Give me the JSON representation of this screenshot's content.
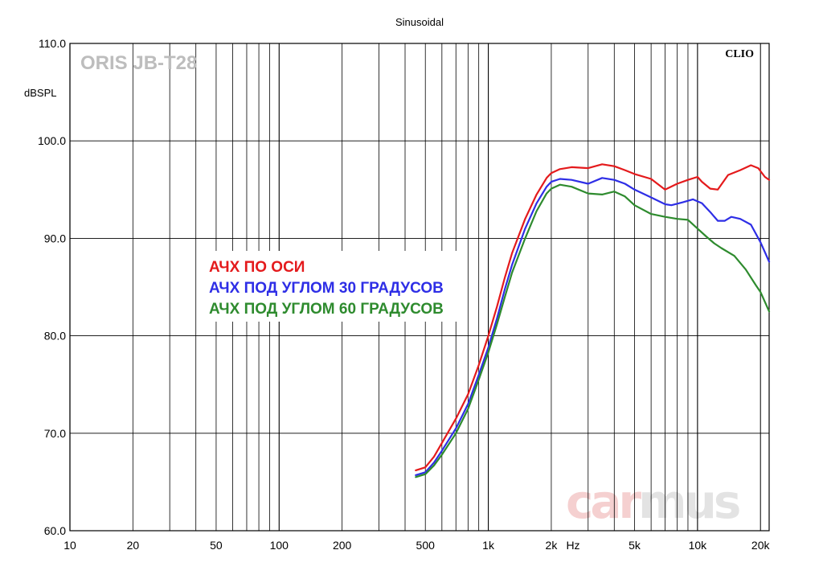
{
  "chart_data": {
    "type": "line",
    "title": "Sinusoidal",
    "ylabel": "dBSPL",
    "xlabel": "Hz",
    "x_scale": "log",
    "xlim": [
      10,
      22000
    ],
    "ylim": [
      60,
      110
    ],
    "grid": true,
    "legend_position": "left-middle",
    "y_ticks": [
      {
        "value": 60,
        "label": "60.0"
      },
      {
        "value": 70,
        "label": "70.0"
      },
      {
        "value": 80,
        "label": "80.0"
      },
      {
        "value": 90,
        "label": "90.0"
      },
      {
        "value": 100,
        "label": "100.0"
      },
      {
        "value": 110,
        "label": "110.0"
      }
    ],
    "x_ticks": [
      {
        "value": 10,
        "label": "10"
      },
      {
        "value": 20,
        "label": "20"
      },
      {
        "value": 50,
        "label": "50"
      },
      {
        "value": 100,
        "label": "100"
      },
      {
        "value": 200,
        "label": "200"
      },
      {
        "value": 500,
        "label": "500"
      },
      {
        "value": 1000,
        "label": "1k"
      },
      {
        "value": 2000,
        "label": "2k"
      },
      {
        "value": 5000,
        "label": "5k"
      },
      {
        "value": 10000,
        "label": "10k"
      },
      {
        "value": 20000,
        "label": "20k"
      }
    ],
    "series": [
      {
        "name": "АЧХ ПО ОСИ",
        "color": "#e41a1c",
        "points": [
          [
            450,
            66.2
          ],
          [
            500,
            66.5
          ],
          [
            550,
            67.6
          ],
          [
            600,
            69.0
          ],
          [
            700,
            71.5
          ],
          [
            800,
            74.0
          ],
          [
            900,
            77.0
          ],
          [
            1000,
            80.0
          ],
          [
            1100,
            83.0
          ],
          [
            1200,
            86.0
          ],
          [
            1300,
            88.5
          ],
          [
            1500,
            92.0
          ],
          [
            1700,
            94.5
          ],
          [
            1900,
            96.2
          ],
          [
            2000,
            96.7
          ],
          [
            2200,
            97.1
          ],
          [
            2500,
            97.3
          ],
          [
            3000,
            97.2
          ],
          [
            3500,
            97.6
          ],
          [
            4000,
            97.4
          ],
          [
            4500,
            97.0
          ],
          [
            5000,
            96.6
          ],
          [
            6000,
            96.1
          ],
          [
            6800,
            95.2
          ],
          [
            7000,
            95.0
          ],
          [
            8000,
            95.6
          ],
          [
            9000,
            96.0
          ],
          [
            10000,
            96.3
          ],
          [
            10500,
            95.8
          ],
          [
            11500,
            95.1
          ],
          [
            12500,
            95.0
          ],
          [
            14000,
            96.5
          ],
          [
            16000,
            97.0
          ],
          [
            18000,
            97.5
          ],
          [
            19500,
            97.2
          ],
          [
            21000,
            96.3
          ],
          [
            22000,
            96.0
          ]
        ]
      },
      {
        "name": "АЧХ ПОД УГЛОМ 30 ГРАДУСОВ",
        "color": "#2e2ee6",
        "points": [
          [
            450,
            65.7
          ],
          [
            500,
            66.0
          ],
          [
            550,
            67.0
          ],
          [
            600,
            68.2
          ],
          [
            700,
            70.5
          ],
          [
            800,
            73.0
          ],
          [
            900,
            76.0
          ],
          [
            1000,
            78.8
          ],
          [
            1100,
            81.8
          ],
          [
            1200,
            84.8
          ],
          [
            1300,
            87.3
          ],
          [
            1500,
            91.0
          ],
          [
            1700,
            93.6
          ],
          [
            1900,
            95.3
          ],
          [
            2000,
            95.8
          ],
          [
            2200,
            96.1
          ],
          [
            2500,
            96.0
          ],
          [
            3000,
            95.6
          ],
          [
            3500,
            96.2
          ],
          [
            4000,
            96.0
          ],
          [
            4500,
            95.6
          ],
          [
            5000,
            95.0
          ],
          [
            6000,
            94.2
          ],
          [
            7000,
            93.5
          ],
          [
            7500,
            93.4
          ],
          [
            8500,
            93.7
          ],
          [
            9500,
            94.0
          ],
          [
            10500,
            93.6
          ],
          [
            11500,
            92.7
          ],
          [
            12500,
            91.8
          ],
          [
            13500,
            91.8
          ],
          [
            14500,
            92.2
          ],
          [
            16000,
            92.0
          ],
          [
            18000,
            91.4
          ],
          [
            20000,
            89.6
          ],
          [
            22000,
            87.6
          ]
        ]
      },
      {
        "name": "АЧХ ПОД УГЛОМ 60 ГРАДУСОВ",
        "color": "#2e8b2e",
        "points": [
          [
            450,
            65.5
          ],
          [
            500,
            65.8
          ],
          [
            550,
            66.7
          ],
          [
            600,
            67.8
          ],
          [
            700,
            70.0
          ],
          [
            800,
            72.5
          ],
          [
            900,
            75.5
          ],
          [
            1000,
            78.3
          ],
          [
            1100,
            81.2
          ],
          [
            1200,
            84.0
          ],
          [
            1300,
            86.5
          ],
          [
            1500,
            90.0
          ],
          [
            1700,
            92.8
          ],
          [
            1900,
            94.6
          ],
          [
            2000,
            95.1
          ],
          [
            2200,
            95.5
          ],
          [
            2500,
            95.3
          ],
          [
            3000,
            94.6
          ],
          [
            3500,
            94.5
          ],
          [
            4000,
            94.8
          ],
          [
            4500,
            94.3
          ],
          [
            5000,
            93.4
          ],
          [
            6000,
            92.5
          ],
          [
            7000,
            92.2
          ],
          [
            8000,
            92.0
          ],
          [
            9000,
            91.9
          ],
          [
            10000,
            91.0
          ],
          [
            11000,
            90.2
          ],
          [
            12000,
            89.5
          ],
          [
            13000,
            89.0
          ],
          [
            15000,
            88.2
          ],
          [
            17000,
            86.8
          ],
          [
            19000,
            85.2
          ],
          [
            20000,
            84.5
          ],
          [
            22000,
            82.5
          ]
        ]
      }
    ]
  },
  "labels": {
    "brand": "CLIO",
    "model": "ORIS JB-T28",
    "watermark_a": "car",
    "watermark_b": "mus"
  }
}
